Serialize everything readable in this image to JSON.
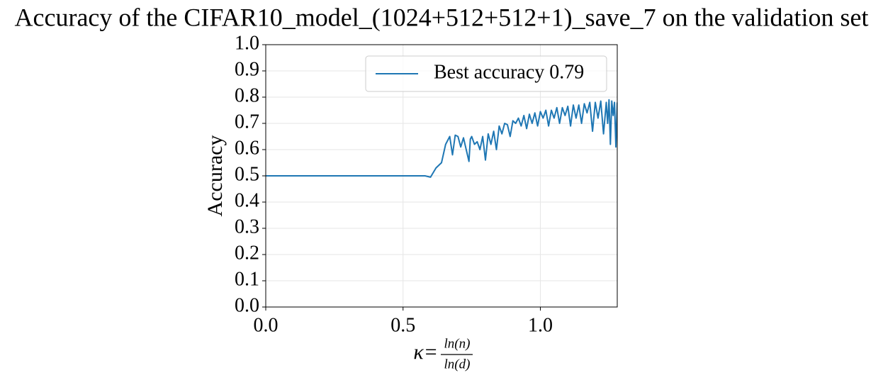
{
  "chart_data": {
    "type": "line",
    "title": "Accuracy of the CIFAR10_model_(1024+512+512+1)_save_7 on the validation set",
    "y_label": "Accuracy",
    "x_label": {
      "prefix": "κ=",
      "numerator": "ln(n)",
      "denominator": "ln(d)"
    },
    "xlim": [
      0,
      1.28
    ],
    "ylim": [
      0,
      1
    ],
    "xticks": [
      {
        "value": 0,
        "label": "0.0"
      },
      {
        "value": 0.5,
        "label": "0.5"
      },
      {
        "value": 1,
        "label": "1.0"
      }
    ],
    "yticks": [
      {
        "value": 0,
        "label": "0.0"
      },
      0.1,
      0.2,
      0.3,
      0.4,
      0.5,
      0.6,
      0.7,
      0.8,
      0.9,
      {
        "value": 1,
        "label": "1.0"
      }
    ],
    "grid": true,
    "legend": "upper right",
    "x": [
      0,
      0.58,
      0.6,
      0.62,
      0.64,
      0.655,
      0.67,
      0.68,
      0.69,
      0.7,
      0.71,
      0.72,
      0.73,
      0.74,
      0.745,
      0.75,
      0.76,
      0.77,
      0.78,
      0.79,
      0.8,
      0.81,
      0.82,
      0.83,
      0.84,
      0.85,
      0.86,
      0.87,
      0.88,
      0.89,
      0.9,
      0.91,
      0.92,
      0.93,
      0.94,
      0.95,
      0.96,
      0.97,
      0.98,
      0.99,
      1.0,
      1.01,
      1.02,
      1.03,
      1.04,
      1.05,
      1.06,
      1.07,
      1.08,
      1.09,
      1.1,
      1.11,
      1.12,
      1.13,
      1.14,
      1.15,
      1.16,
      1.17,
      1.18,
      1.19,
      1.2,
      1.21,
      1.22,
      1.23,
      1.24,
      1.245,
      1.25,
      1.255,
      1.26,
      1.265,
      1.27,
      1.275,
      1.28
    ],
    "series": [
      {
        "name": "Best accuracy 0.79",
        "color": "#1f77b4",
        "values": [
          0.5,
          0.5,
          0.495,
          0.53,
          0.55,
          0.62,
          0.65,
          0.58,
          0.655,
          0.65,
          0.61,
          0.645,
          0.6,
          0.555,
          0.64,
          0.65,
          0.62,
          0.63,
          0.6,
          0.65,
          0.56,
          0.66,
          0.62,
          0.67,
          0.6,
          0.69,
          0.66,
          0.7,
          0.695,
          0.65,
          0.71,
          0.7,
          0.72,
          0.69,
          0.73,
          0.68,
          0.735,
          0.7,
          0.74,
          0.69,
          0.745,
          0.72,
          0.75,
          0.69,
          0.75,
          0.72,
          0.76,
          0.7,
          0.76,
          0.73,
          0.765,
          0.69,
          0.77,
          0.72,
          0.77,
          0.7,
          0.775,
          0.74,
          0.78,
          0.67,
          0.78,
          0.72,
          0.785,
          0.66,
          0.78,
          0.7,
          0.79,
          0.62,
          0.785,
          0.73,
          0.78,
          0.61,
          0.78
        ]
      }
    ]
  }
}
